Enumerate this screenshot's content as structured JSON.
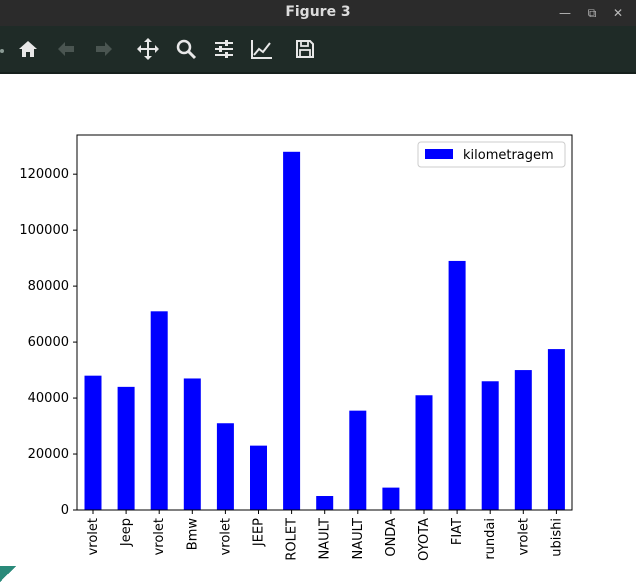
{
  "window": {
    "title": "Figure 3"
  },
  "toolbar": {
    "buttons": [
      {
        "icon": "home-icon",
        "enabled": true
      },
      {
        "icon": "back-arrow-icon",
        "enabled": false
      },
      {
        "icon": "forward-arrow-icon",
        "enabled": false
      },
      {
        "icon": "pan-icon",
        "enabled": true
      },
      {
        "icon": "zoom-icon",
        "enabled": true
      },
      {
        "icon": "subplots-config-icon",
        "enabled": true
      },
      {
        "icon": "edit-axes-icon",
        "enabled": true
      },
      {
        "icon": "save-icon",
        "enabled": true
      }
    ]
  },
  "chart_data": {
    "type": "bar",
    "categories": [
      "vrolet",
      "Jeep",
      "vrolet",
      "Bmw",
      "vrolet",
      "JEEP",
      "ROLET",
      "NAULT",
      "NAULT",
      "ONDA",
      "OYOTA",
      "FIAT",
      "rundai",
      "vrolet",
      "ubishi"
    ],
    "series": [
      {
        "name": "kilometragem",
        "color": "#0000ff",
        "values": [
          48000,
          44000,
          71000,
          47000,
          31000,
          23000,
          128000,
          5000,
          35500,
          8000,
          41000,
          89000,
          46000,
          50000,
          57500
        ]
      }
    ],
    "ylim": [
      0,
      135000
    ],
    "yticks": [
      0,
      20000,
      40000,
      60000,
      80000,
      100000,
      120000
    ],
    "legend": {
      "position": "top-right"
    },
    "grid": false
  }
}
